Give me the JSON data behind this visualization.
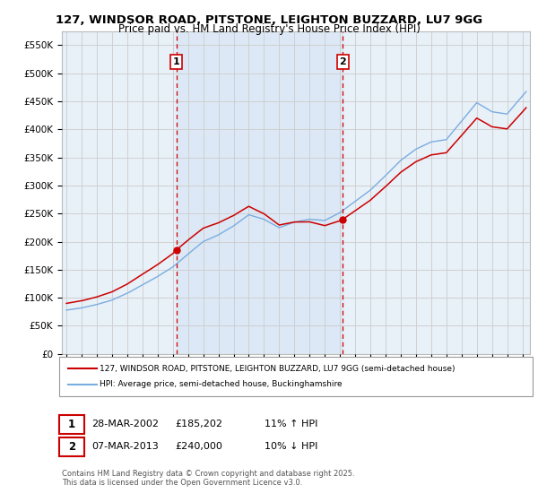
{
  "title": "127, WINDSOR ROAD, PITSTONE, LEIGHTON BUZZARD, LU7 9GG",
  "subtitle": "Price paid vs. HM Land Registry's House Price Index (HPI)",
  "ylabel_ticks": [
    "£0",
    "£50K",
    "£100K",
    "£150K",
    "£200K",
    "£250K",
    "£300K",
    "£350K",
    "£400K",
    "£450K",
    "£500K",
    "£550K"
  ],
  "ytick_values": [
    0,
    50000,
    100000,
    150000,
    200000,
    250000,
    300000,
    350000,
    400000,
    450000,
    500000,
    550000
  ],
  "ylim": [
    0,
    575000
  ],
  "sale1_date": "28-MAR-2002",
  "sale1_price": 185202,
  "sale1_year": 2002.24,
  "sale1_hpi": "11% ↑ HPI",
  "sale2_date": "07-MAR-2013",
  "sale2_price": 240000,
  "sale2_year": 2013.18,
  "sale2_hpi": "10% ↓ HPI",
  "legend_line1": "127, WINDSOR ROAD, PITSTONE, LEIGHTON BUZZARD, LU7 9GG (semi-detached house)",
  "legend_line2": "HPI: Average price, semi-detached house, Buckinghamshire",
  "footer": "Contains HM Land Registry data © Crown copyright and database right 2025.\nThis data is licensed under the Open Government Licence v3.0.",
  "line_color_red": "#cc0000",
  "line_color_blue": "#7aade0",
  "shading_color": "#dce8f5",
  "bg_color": "#ffffff",
  "plot_bg_color": "#e8f0f8",
  "grid_color": "#cccccc",
  "vline_color": "#cc0000",
  "xlim_left": 1994.7,
  "xlim_right": 2025.5
}
